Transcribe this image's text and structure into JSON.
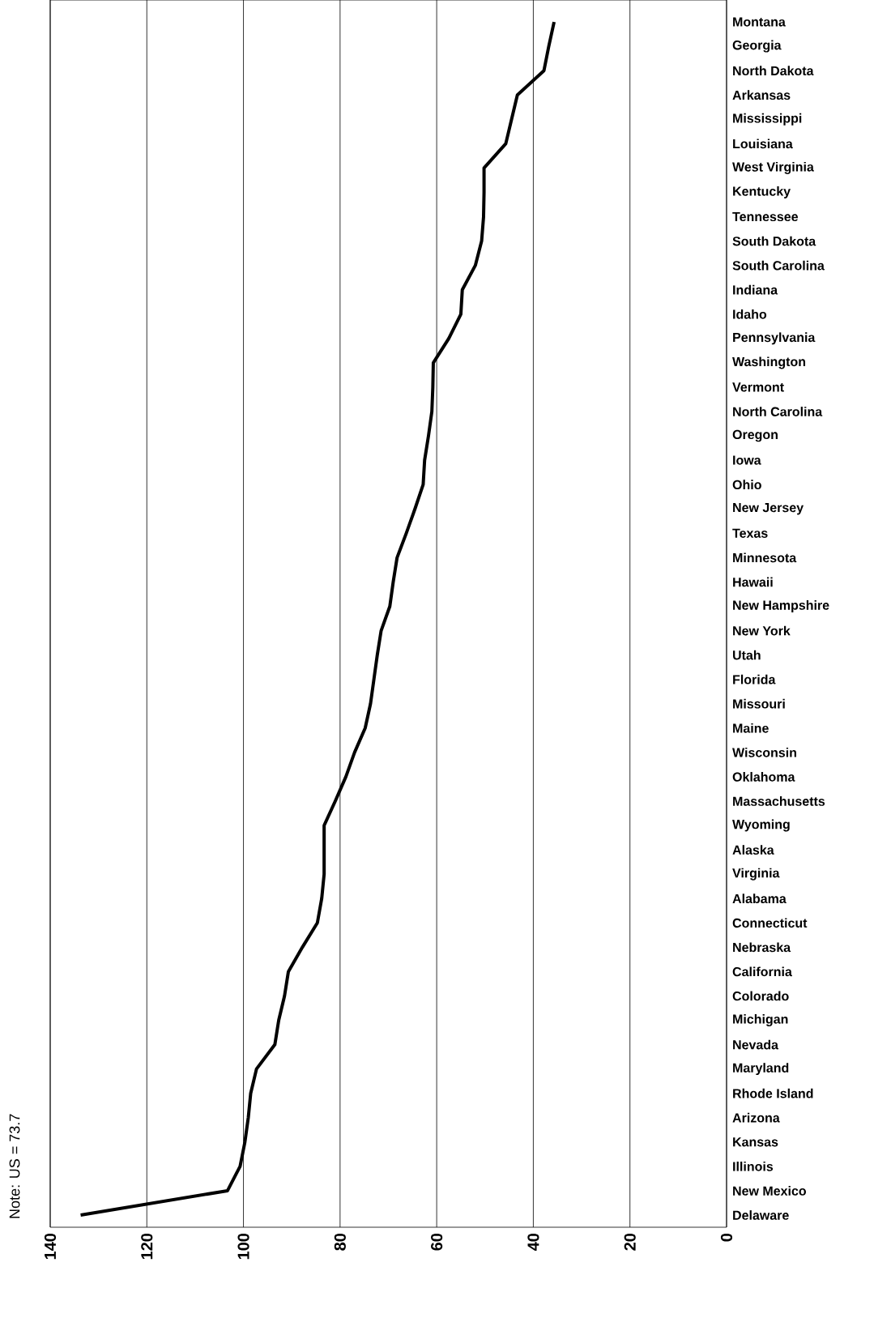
{
  "chart_data": {
    "type": "line",
    "orientation": "horizontal",
    "categories": [
      "Montana",
      "Georgia",
      "North Dakota",
      "Arkansas",
      "Mississippi",
      "Louisiana",
      "West Virginia",
      "Kentucky",
      "Tennessee",
      "South Dakota",
      "South Carolina",
      "Indiana",
      "Idaho",
      "Pennsylvania",
      "Washington",
      "Vermont",
      "North Carolina",
      "Oregon",
      "Iowa",
      "Ohio",
      "New Jersey",
      "Texas",
      "Minnesota",
      "Hawaii",
      "New Hampshire",
      "New York",
      "Utah",
      "Florida",
      "Missouri",
      "Maine",
      "Wisconsin",
      "Oklahoma",
      "Massachusetts",
      "Wyoming",
      "Alaska",
      "Virginia",
      "Alabama",
      "Connecticut",
      "Nebraska",
      "California",
      "Colorado",
      "Michigan",
      "Nevada",
      "Maryland",
      "Rhode Island",
      "Arizona",
      "Kansas",
      "Illinois",
      "New Mexico",
      "Delaware"
    ],
    "values": [
      35.7,
      36.8,
      37.8,
      43.3,
      44.5,
      45.7,
      50.2,
      50.2,
      50.3,
      50.7,
      52,
      54.7,
      55,
      57.5,
      60.7,
      60.8,
      61,
      61.7,
      62.5,
      62.8,
      64.5,
      66.3,
      68.2,
      69,
      69.7,
      71.5,
      72.3,
      73,
      73.7,
      74.8,
      77,
      78.8,
      81,
      83.3,
      83.3,
      83.3,
      83.8,
      84.7,
      87.8,
      90.7,
      91.5,
      92.7,
      93.5,
      97.3,
      98.5,
      99,
      99.7,
      100.7,
      103.3,
      133.7
    ],
    "color": "#000000",
    "xlim": [
      140,
      0
    ],
    "xticks": [
      140,
      120,
      100,
      80,
      60,
      40,
      20,
      0
    ],
    "grid": "x",
    "annotations": [
      "Note:  US = 73.7"
    ]
  }
}
